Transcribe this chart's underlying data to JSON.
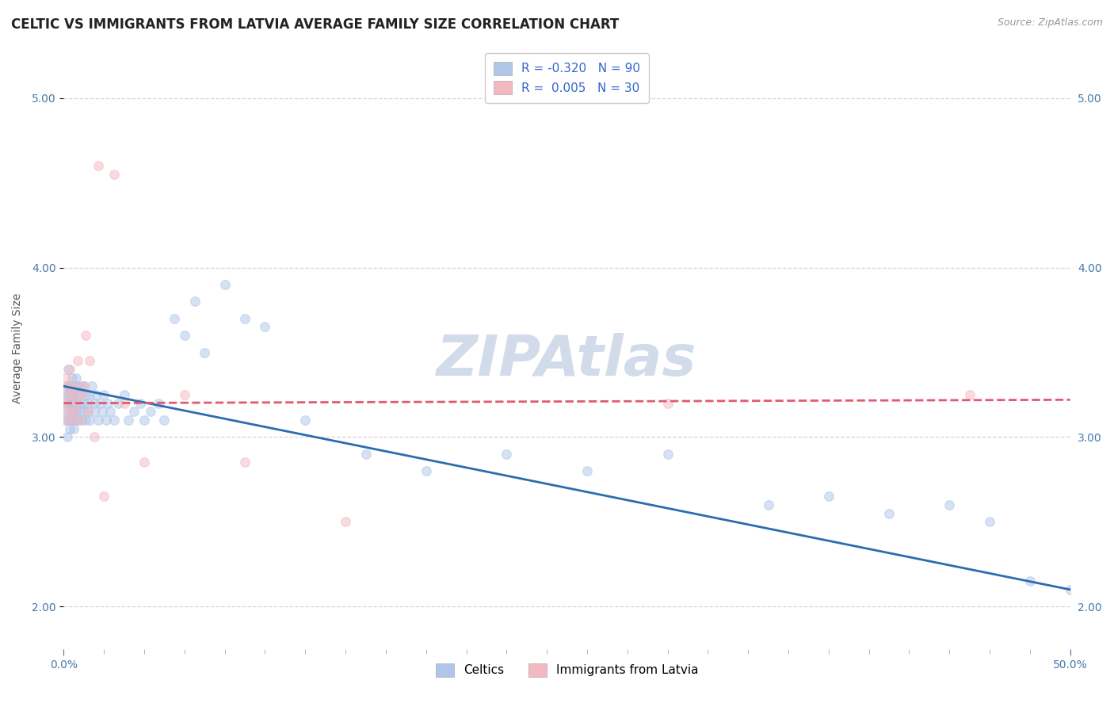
{
  "title": "CELTIC VS IMMIGRANTS FROM LATVIA AVERAGE FAMILY SIZE CORRELATION CHART",
  "source": "Source: ZipAtlas.com",
  "ylabel": "Average Family Size",
  "xlim": [
    0.0,
    0.5
  ],
  "ylim": [
    1.75,
    5.3
  ],
  "yticks": [
    2.0,
    3.0,
    4.0,
    5.0
  ],
  "series": [
    {
      "name": "Celtics",
      "R": -0.32,
      "N": 90,
      "color": "#aec6e8",
      "line_color": "#2B6CB0",
      "line_style": "-",
      "x": [
        0.0005,
        0.001,
        0.001,
        0.0012,
        0.0015,
        0.0018,
        0.002,
        0.002,
        0.002,
        0.0022,
        0.0025,
        0.003,
        0.003,
        0.003,
        0.003,
        0.0032,
        0.0035,
        0.004,
        0.004,
        0.004,
        0.004,
        0.004,
        0.0045,
        0.005,
        0.005,
        0.005,
        0.005,
        0.005,
        0.006,
        0.006,
        0.006,
        0.006,
        0.007,
        0.007,
        0.007,
        0.008,
        0.008,
        0.008,
        0.009,
        0.009,
        0.01,
        0.01,
        0.01,
        0.011,
        0.011,
        0.012,
        0.012,
        0.013,
        0.013,
        0.014,
        0.015,
        0.015,
        0.016,
        0.017,
        0.018,
        0.019,
        0.02,
        0.021,
        0.022,
        0.023,
        0.025,
        0.027,
        0.03,
        0.032,
        0.035,
        0.038,
        0.04,
        0.043,
        0.047,
        0.05,
        0.055,
        0.06,
        0.065,
        0.07,
        0.08,
        0.09,
        0.1,
        0.12,
        0.15,
        0.18,
        0.22,
        0.26,
        0.3,
        0.35,
        0.38,
        0.41,
        0.44,
        0.46,
        0.48,
        0.5
      ],
      "y": [
        3.2,
        3.1,
        3.3,
        3.15,
        3.25,
        3.0,
        3.2,
        3.4,
        3.1,
        3.25,
        3.3,
        3.15,
        3.2,
        3.05,
        3.25,
        3.1,
        3.3,
        3.2,
        3.15,
        3.25,
        3.35,
        3.1,
        3.2,
        3.15,
        3.3,
        3.05,
        3.25,
        3.2,
        3.1,
        3.35,
        3.2,
        3.15,
        3.25,
        3.1,
        3.3,
        3.2,
        3.15,
        3.25,
        3.1,
        3.3,
        3.2,
        3.15,
        3.3,
        3.25,
        3.1,
        3.2,
        3.15,
        3.25,
        3.1,
        3.3,
        3.2,
        3.15,
        3.25,
        3.1,
        3.2,
        3.15,
        3.25,
        3.1,
        3.2,
        3.15,
        3.1,
        3.2,
        3.25,
        3.1,
        3.15,
        3.2,
        3.1,
        3.15,
        3.2,
        3.1,
        3.7,
        3.6,
        3.8,
        3.5,
        3.9,
        3.7,
        3.65,
        3.1,
        2.9,
        2.8,
        2.9,
        2.8,
        2.9,
        2.6,
        2.65,
        2.55,
        2.6,
        2.5,
        2.15,
        2.1
      ],
      "trend_x": [
        0.0,
        0.5
      ],
      "trend_y": [
        3.3,
        2.1
      ]
    },
    {
      "name": "Immigrants from Latvia",
      "R": 0.005,
      "N": 30,
      "color": "#f4b8c1",
      "line_color": "#e05a72",
      "line_style": "--",
      "x": [
        0.0005,
        0.001,
        0.001,
        0.002,
        0.002,
        0.003,
        0.003,
        0.004,
        0.004,
        0.005,
        0.005,
        0.006,
        0.007,
        0.008,
        0.009,
        0.01,
        0.011,
        0.012,
        0.013,
        0.015,
        0.017,
        0.02,
        0.025,
        0.03,
        0.04,
        0.06,
        0.09,
        0.14,
        0.3,
        0.45
      ],
      "y": [
        3.2,
        3.1,
        3.35,
        3.15,
        3.3,
        3.25,
        3.4,
        3.1,
        3.25,
        3.15,
        3.3,
        3.2,
        3.45,
        3.1,
        3.25,
        3.3,
        3.6,
        3.15,
        3.45,
        3.0,
        4.6,
        2.65,
        4.55,
        3.2,
        2.85,
        3.25,
        2.85,
        2.5,
        3.2,
        3.25
      ],
      "trend_x": [
        0.0,
        0.5
      ],
      "trend_y": [
        3.2,
        3.22
      ]
    }
  ],
  "background_color": "#ffffff",
  "grid_color": "#cccccc",
  "title_fontsize": 12,
  "axis_label_fontsize": 10,
  "tick_fontsize": 10,
  "legend_fontsize": 11,
  "marker_size": 70,
  "marker_alpha": 0.5,
  "watermark_text": "ZIPAtlas",
  "watermark_color": "#ccd8e8",
  "watermark_fontsize": 52,
  "source_text": "Source: ZipAtlas.com"
}
